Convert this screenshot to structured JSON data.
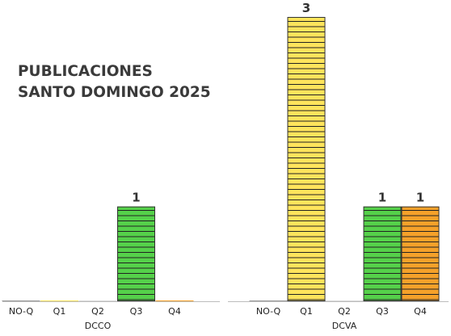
{
  "chart_data": {
    "type": "bar",
    "title_lines": [
      "PUBLICACIONES",
      "SANTO DOMINGO 2025"
    ],
    "ylim": [
      0,
      3.1
    ],
    "grid": false,
    "legend": "none",
    "colors": {
      "NO-Q": "#9a9a9a",
      "Q1": "#ffe45c",
      "Q2": "#d9d9d9",
      "Q3": "#55d14a",
      "Q4": "#f5a12a"
    },
    "groups": [
      {
        "name": "DCCO",
        "categories": [
          "NO-Q",
          "Q1",
          "Q2",
          "Q3",
          "Q4"
        ],
        "values": [
          0,
          0,
          0,
          1,
          0
        ],
        "labels": [
          "",
          "",
          "",
          "1",
          ""
        ]
      },
      {
        "name": "DCVA",
        "categories": [
          "NO-Q",
          "Q1",
          "Q2",
          "Q3",
          "Q4"
        ],
        "values": [
          0,
          3,
          0,
          1,
          1
        ],
        "labels": [
          "",
          "3",
          "",
          "1",
          "1"
        ]
      }
    ]
  }
}
